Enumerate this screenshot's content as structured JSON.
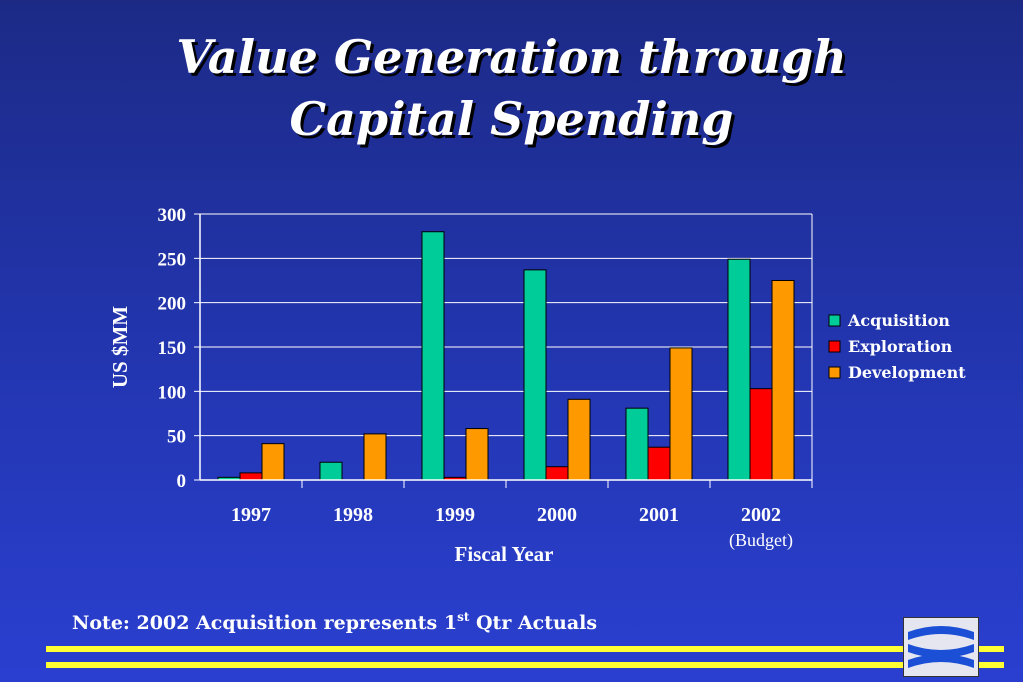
{
  "title": {
    "line1": "Value Generation through",
    "line2": "Capital Spending"
  },
  "colors": {
    "background": "#2336b2",
    "acquisition": "#00cc99",
    "exploration": "#ff0000",
    "development": "#ff9900",
    "stripe": "#ffff33"
  },
  "chart_data": {
    "type": "bar",
    "categories": [
      "1997",
      "1998",
      "1999",
      "2000",
      "2001",
      "2002"
    ],
    "category_sublabels": [
      "",
      "",
      "",
      "",
      "",
      "(Budget)"
    ],
    "series": [
      {
        "name": "Acquisition",
        "color": "#00cc99",
        "values": [
          3,
          20,
          280,
          237,
          81,
          249
        ]
      },
      {
        "name": "Exploration",
        "color": "#ff0000",
        "values": [
          8,
          0,
          3,
          15,
          37,
          103
        ]
      },
      {
        "name": "Development",
        "color": "#ff9900",
        "values": [
          41,
          52,
          58,
          91,
          149,
          225
        ]
      }
    ],
    "xlabel": "Fiscal Year",
    "ylabel": "US $MM",
    "ylim": [
      0,
      300
    ],
    "yticks": [
      0,
      50,
      100,
      150,
      200,
      250,
      300
    ],
    "grid": true,
    "legend_position": "right"
  },
  "note": {
    "prefix": "Note: 2002 Acquisition represents 1",
    "superscript": "st",
    "suffix": " Qtr Actuals"
  },
  "logo": {
    "icon": "wave-logo-icon"
  }
}
